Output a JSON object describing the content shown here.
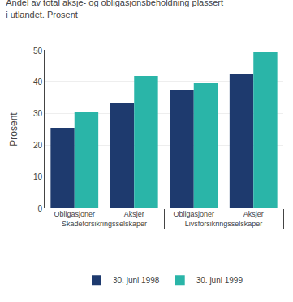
{
  "chart_data": {
    "type": "bar",
    "title": "Andel av total aksje- og obligasjonsbeholdning plassert\ni utlandet. Prosent",
    "y_label": "Prosent",
    "categories": [
      [
        "Skadeforsikringsselskaper",
        "Obligasjoner"
      ],
      [
        "Skadeforsikringsselskaper",
        "Aksjer"
      ],
      [
        "Livsforsikringsselskaper",
        "Obligasjoner"
      ],
      [
        "Livsforsikringsselskaper",
        "Aksjer"
      ]
    ],
    "series": [
      {
        "name": "30. juni 1998",
        "color": "#1e3a6e",
        "values": [
          25.5,
          33.5,
          37.5,
          42.5
        ]
      },
      {
        "name": "30. juni 1999",
        "color": "#2ab5a8",
        "values": [
          30.5,
          42.0,
          39.7,
          49.5
        ]
      }
    ],
    "ylim": [
      0,
      50
    ],
    "yticks": [
      0,
      10,
      20,
      30,
      40,
      50
    ],
    "grid": true,
    "legend": "bottom"
  }
}
